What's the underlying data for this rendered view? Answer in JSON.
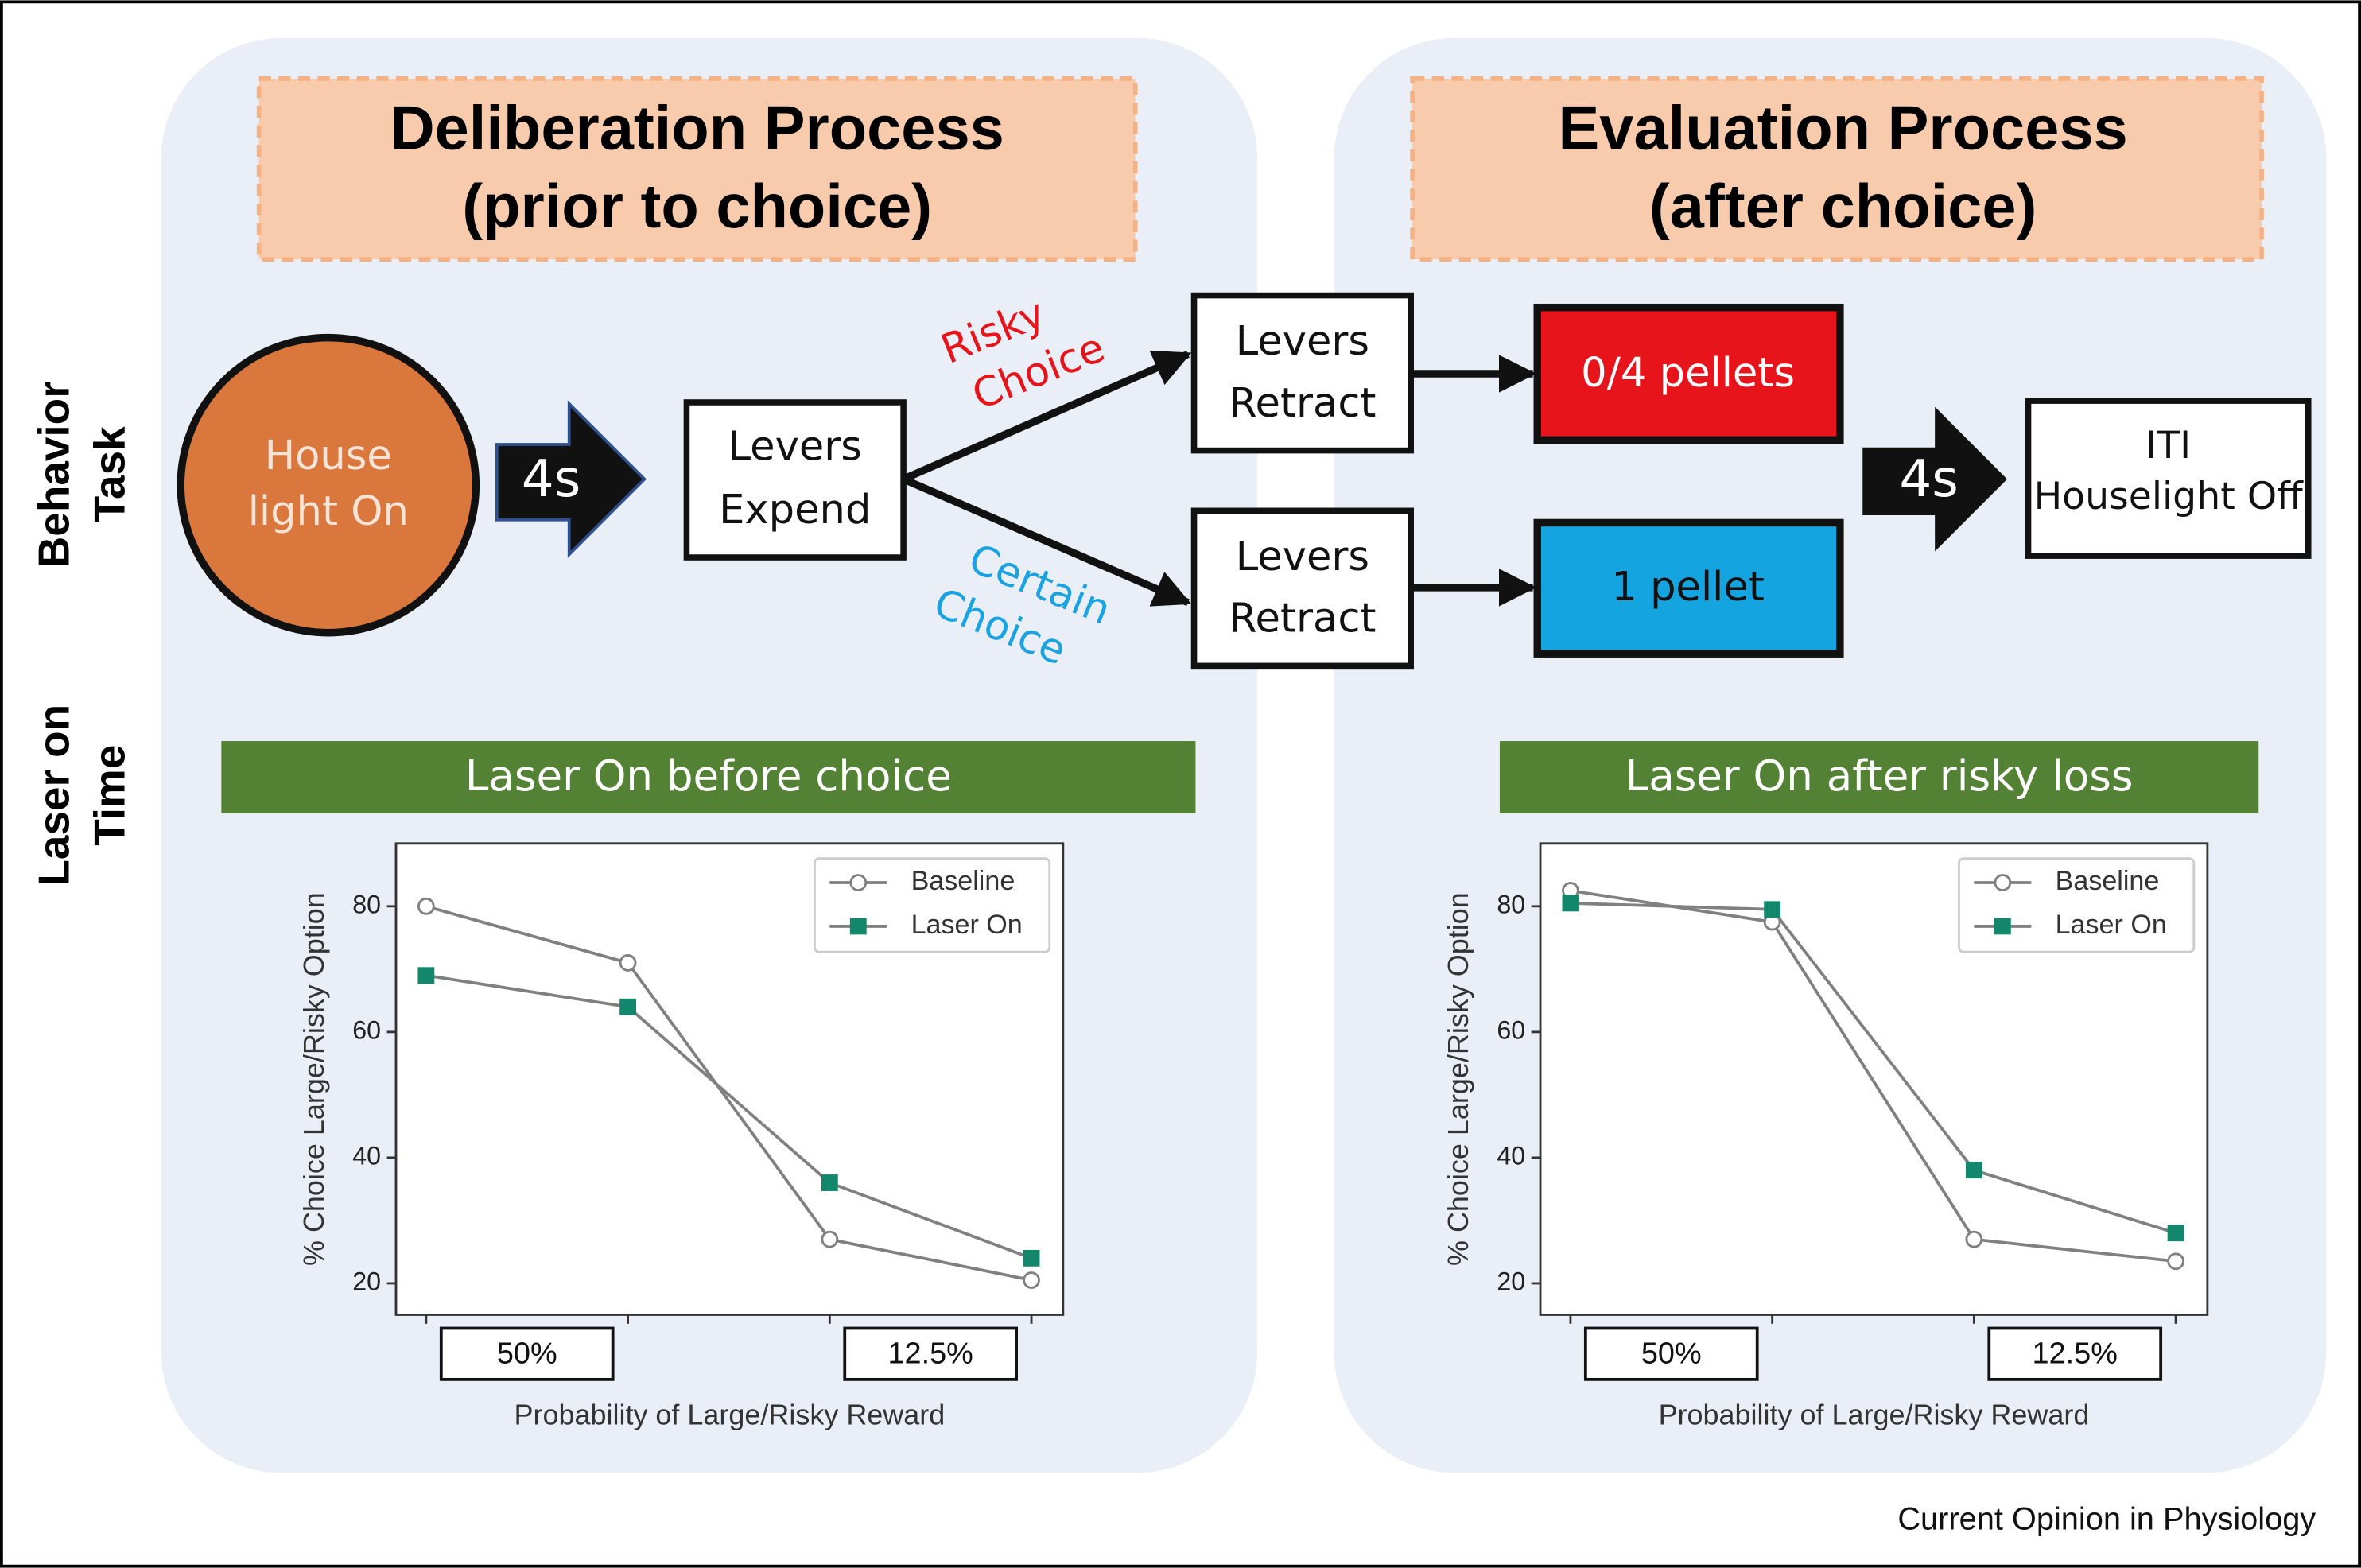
{
  "row_labels": [
    [
      "Behavior",
      "Task"
    ],
    [
      "Laser on",
      "Time"
    ]
  ],
  "panels": [
    {
      "title": [
        "Deliberation Process",
        "(prior to choice)"
      ]
    },
    {
      "title": [
        "Evaluation Process",
        "(after choice)"
      ]
    }
  ],
  "nodes": [
    {
      "label": [
        "House",
        "light On"
      ]
    },
    {
      "label": [
        "4s"
      ]
    },
    {
      "label": [
        "Levers",
        "Expend"
      ]
    },
    {
      "label": [
        "Levers",
        "Retract"
      ]
    },
    {
      "label": [
        "Levers",
        "Retract"
      ]
    },
    {
      "label": [
        "0/4 pellets"
      ]
    },
    {
      "label": [
        "1 pellet"
      ]
    },
    {
      "label": [
        "4s"
      ]
    },
    {
      "label": [
        "ITI",
        "Houselight Off"
      ]
    }
  ],
  "edges": [
    {
      "label": [
        "Risky",
        "Choice"
      ]
    },
    {
      "label": [
        "Certain",
        "Choice"
      ]
    }
  ],
  "chart_data": [
    {
      "type": "line",
      "title": "Laser On before choice",
      "categories": [
        null,
        null,
        null,
        null
      ],
      "category_groups": [
        "50%",
        "12.5%"
      ],
      "x_label": "Probability of Large/Risky Reward",
      "y_label": "% Choice Large/Risky Option",
      "ylim": [
        15,
        90
      ],
      "yticks": [
        20,
        40,
        60,
        80
      ],
      "legend": "upper right",
      "line_color": "#808080",
      "series": [
        {
          "name": "Baseline",
          "color": "#ffffff",
          "marker": "circle",
          "values": [
            80,
            71,
            27,
            20.5
          ]
        },
        {
          "name": "Laser On",
          "color": "#13876b",
          "marker": "square",
          "values": [
            69,
            64,
            36,
            24
          ]
        }
      ]
    },
    {
      "type": "line",
      "title": "Laser On after risky loss",
      "categories": [
        null,
        null,
        null,
        null
      ],
      "category_groups": [
        "50%",
        "12.5%"
      ],
      "x_label": "Probability of Large/Risky Reward",
      "y_label": "% Choice Large/Risky Option",
      "ylim": [
        15,
        90
      ],
      "yticks": [
        20,
        40,
        60,
        80
      ],
      "legend": "upper right",
      "line_color": "#808080",
      "series": [
        {
          "name": "Baseline",
          "color": "#ffffff",
          "marker": "circle",
          "values": [
            82.5,
            77.5,
            27,
            23.5
          ]
        },
        {
          "name": "Laser On",
          "color": "#13876b",
          "marker": "square",
          "values": [
            80.5,
            79.5,
            38,
            28
          ]
        }
      ]
    }
  ],
  "footer": "Current Opinion in Physiology"
}
